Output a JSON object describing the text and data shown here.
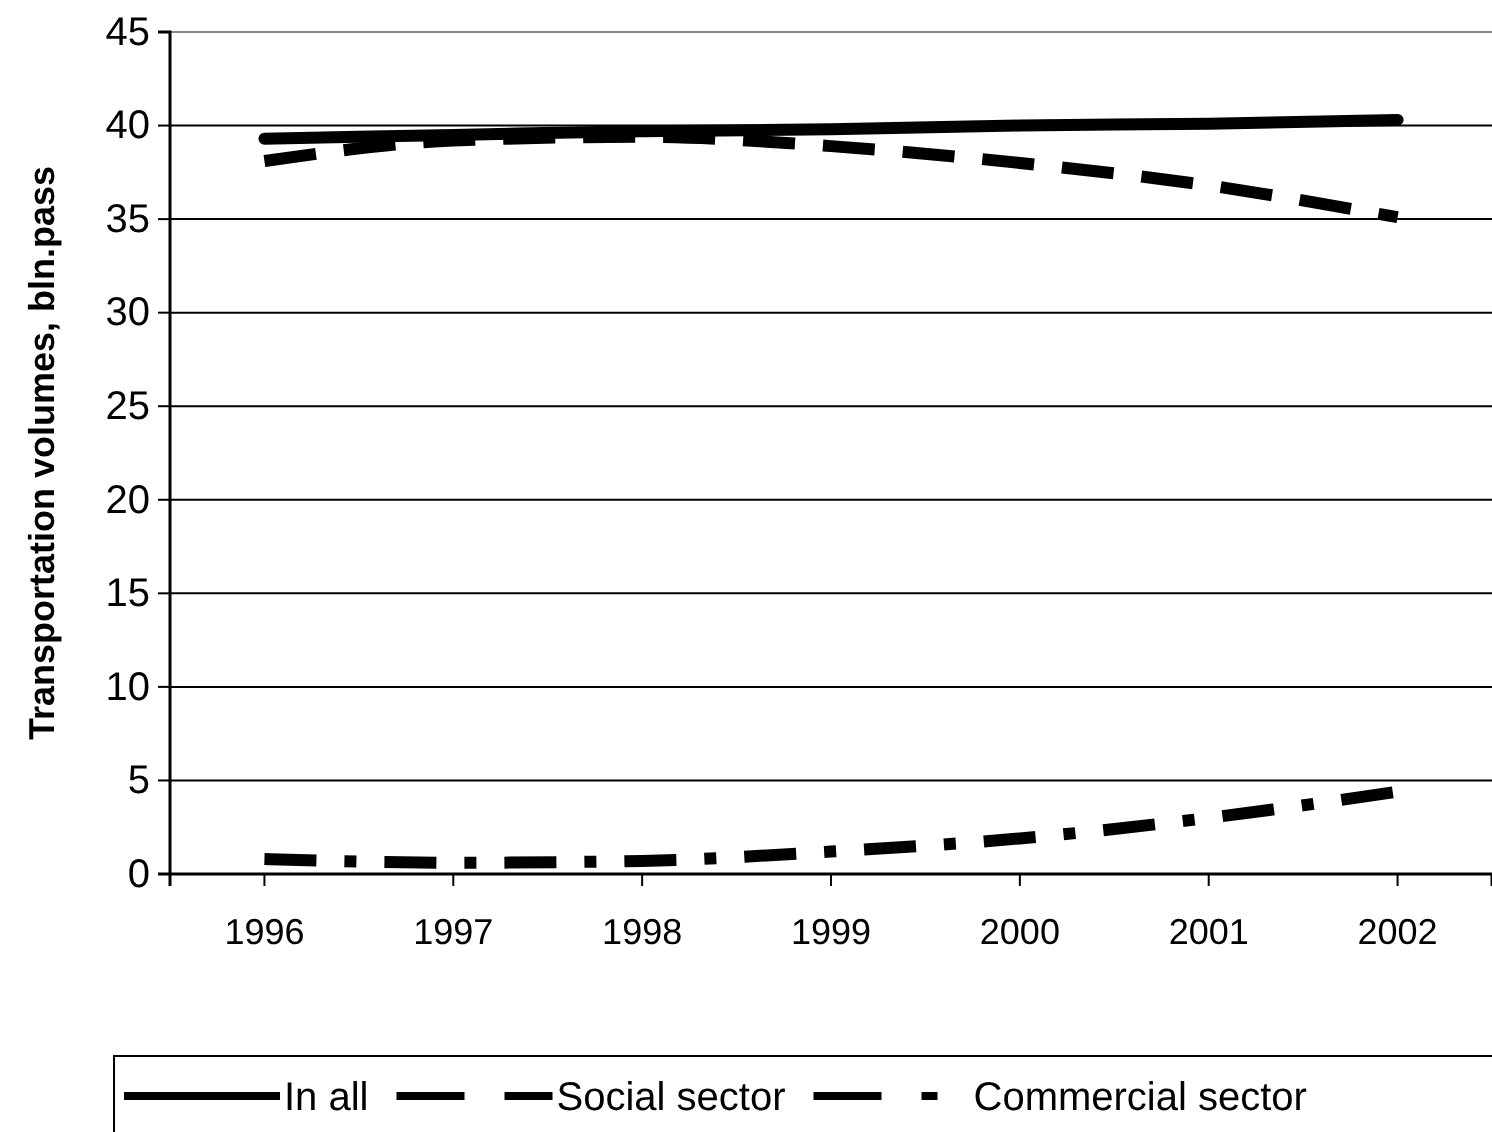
{
  "chart_data": {
    "type": "line",
    "ylabel": "Transportation volumes, bln.pass",
    "categories": [
      "1996",
      "1997",
      "1998",
      "1999",
      "2000",
      "2001",
      "2002"
    ],
    "series": [
      {
        "name": "In all",
        "color": "#000000",
        "line_style": "solid",
        "values": [
          39.3,
          39.5,
          39.7,
          39.8,
          40.0,
          40.1,
          40.3
        ]
      },
      {
        "name": "Social sector",
        "color": "#000000",
        "line_style": "dashed",
        "values": [
          38.1,
          39.2,
          39.4,
          38.9,
          38.0,
          36.8,
          35.1
        ]
      },
      {
        "name": "Commercial sector",
        "color": "#000000",
        "line_style": "dashdot",
        "values": [
          0.8,
          0.6,
          0.7,
          1.2,
          1.9,
          3.0,
          4.4
        ]
      }
    ],
    "ylim": [
      0,
      45
    ],
    "yticks": [
      0,
      5,
      10,
      15,
      20,
      25,
      30,
      35,
      40,
      45
    ],
    "grid": "y",
    "legend": "bottom",
    "marker": "none"
  }
}
